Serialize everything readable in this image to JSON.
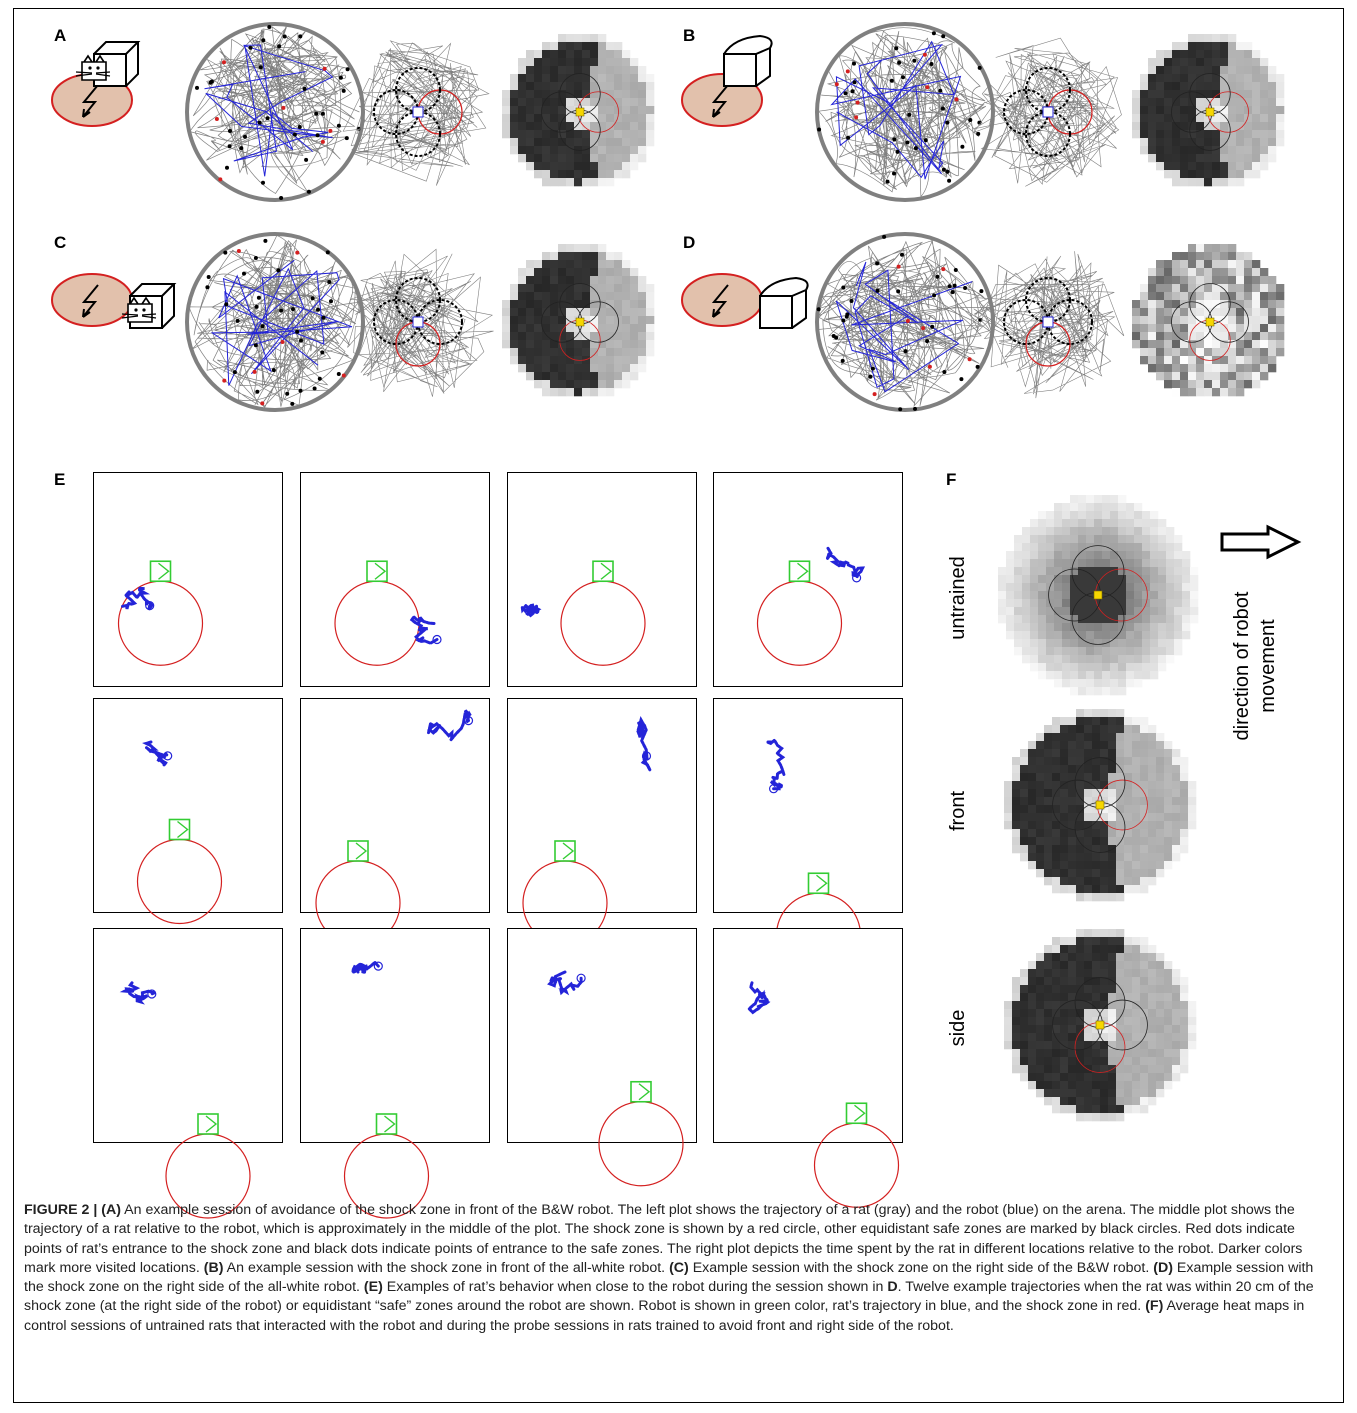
{
  "panels": {
    "A": "A",
    "B": "B",
    "C": "C",
    "D": "D",
    "E": "E",
    "F": "F"
  },
  "heatmap_rows": {
    "untrained": "untrained",
    "front": "front",
    "side": "side"
  },
  "direction_label": "direction of robot movement",
  "caption": {
    "figure": "FIGURE 2 |",
    "A_tag": "(A)",
    "A_text": " An example session of avoidance of the shock zone in front of the B&W robot. The left plot shows the trajectory of a rat (gray) and the robot (blue) on the arena. The middle plot shows the trajectory of a rat relative to the robot, which is approximately in the middle of the plot. The shock zone is shown by a red circle, other equidistant safe zones are marked by black circles. Red dots indicate points of rat’s entrance to the shock zone and black dots indicate points of entrance to the safe zones. The right plot depicts the time spent by the rat in different locations relative to the robot. Darker colors mark more visited locations. ",
    "B_tag": "(B)",
    "B_text": " An example session with the shock zone in front of the all-white robot. ",
    "C_tag": "(C)",
    "C_text": " Example session with the shock zone on the right side of the B&W robot. ",
    "D_tag": "(D)",
    "D_text": " Example session with the shock zone on the right side of the all-white robot. ",
    "E_tag": "(E)",
    "E_text_1": " Examples of rat’s behavior when close to the robot during the session shown in ",
    "E_ref": "D",
    "E_text_2": ". Twelve example trajectories when the rat was within 20 cm of the shock zone (at the right side of the robot) or equidistant “safe” zones around the robot are shown. Robot is shown in green color, rat’s trajectory in blue, and the shock zone in red. ",
    "F_tag": "(F)",
    "F_text": " Average heat maps in control sessions of untrained rats that interacted with the robot and during the probe sessions in rats trained to avoid front and right side of the robot."
  },
  "colors": {
    "shock_zone": "#d42020",
    "robot": "#33cc33",
    "rat_trajectory": "#2424d8",
    "arena_trace": "#808080",
    "zone_fill": "#e2c1ac"
  }
}
